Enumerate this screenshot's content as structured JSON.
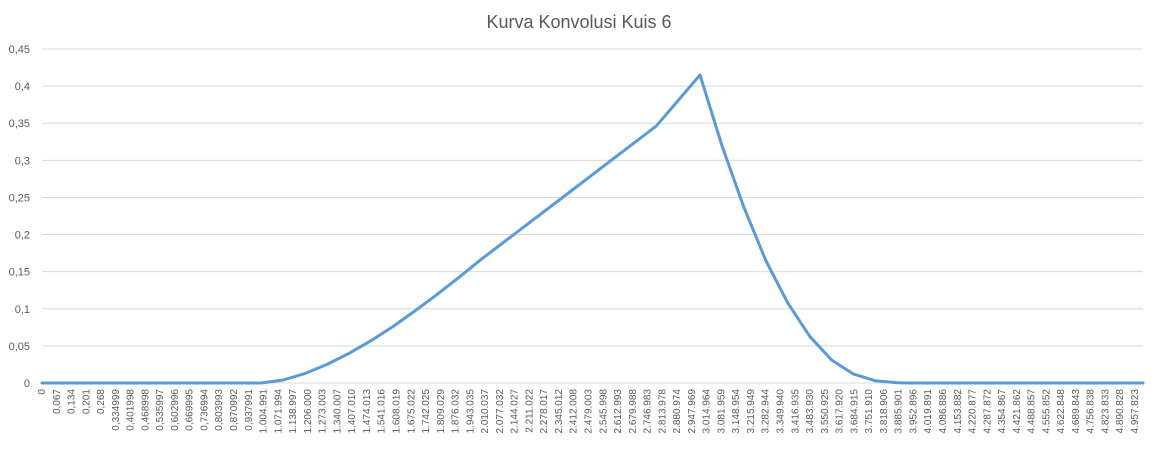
{
  "chart_data": {
    "type": "line",
    "title": "Kurva Konvolusi Kuis 6",
    "xlabel": "",
    "ylabel": "",
    "ylim": [
      0,
      0.45
    ],
    "y_ticks": [
      "0",
      "0,05",
      "0,1",
      "0,15",
      "0,2",
      "0,25",
      "0,3",
      "0,35",
      "0,4",
      "0,45"
    ],
    "x_ticks": [
      "0",
      "0,067",
      "0,134",
      "0,201",
      "0,268",
      "0,334999",
      "0,401998",
      "0,468998",
      "0,535997",
      "0,602996",
      "0,669995",
      "0,736994",
      "0,803993",
      "0,870992",
      "0,937991",
      "1.004.991",
      "1.071.994",
      "1.138.997",
      "1.206.000",
      "1.273.003",
      "1.340.007",
      "1.407.010",
      "1.474.013",
      "1.541.016",
      "1.608.019",
      "1.675.022",
      "1.742.025",
      "1.809.029",
      "1.876.032",
      "1.943.035",
      "2.010.037",
      "2.077.032",
      "2.144.027",
      "2.211.022",
      "2.278.017",
      "2.345.012",
      "2.412.008",
      "2.479.003",
      "2.545.998",
      "2.612.993",
      "2.679.988",
      "2.746.983",
      "2.813.978",
      "2.880.974",
      "2.947.969",
      "3.014.964",
      "3.081.959",
      "3.148.954",
      "3.215.949",
      "3.282.944",
      "3.349.940",
      "3.416.935",
      "3.483.930",
      "3.550.925",
      "3.617.920",
      "3.684.915",
      "3.751.910",
      "3.818.906",
      "3.885.901",
      "3.952.896",
      "4.019.891",
      "4.086.886",
      "4.153.882",
      "4.220.877",
      "4.287.872",
      "4.354.867",
      "4.421.862",
      "4.488.857",
      "4.555.852",
      "4.622.848",
      "4.689.843",
      "4.756.838",
      "4.823.833",
      "4.890.828",
      "4.957.823"
    ],
    "x_range": [
      0,
      5.02
    ],
    "series": [
      {
        "color": "#5B9BD5",
        "x": [
          0,
          0.5,
          1.0,
          1.1,
          1.2,
          1.3,
          1.4,
          1.5,
          1.6,
          1.7,
          1.8,
          1.9,
          2.0,
          2.2,
          2.4,
          2.6,
          2.8,
          3.0,
          3.1,
          3.2,
          3.3,
          3.4,
          3.5,
          3.6,
          3.7,
          3.8,
          3.9,
          3.95,
          4.0,
          4.5,
          5.02
        ],
        "y": [
          0,
          0,
          0,
          0.004,
          0.013,
          0.025,
          0.04,
          0.057,
          0.076,
          0.097,
          0.119,
          0.142,
          0.166,
          0.211,
          0.256,
          0.301,
          0.346,
          0.415,
          0.32,
          0.237,
          0.165,
          0.108,
          0.063,
          0.031,
          0.012,
          0.003,
          0.0003,
          0,
          0,
          0,
          0
        ]
      }
    ],
    "grid": true,
    "legend": "none"
  }
}
